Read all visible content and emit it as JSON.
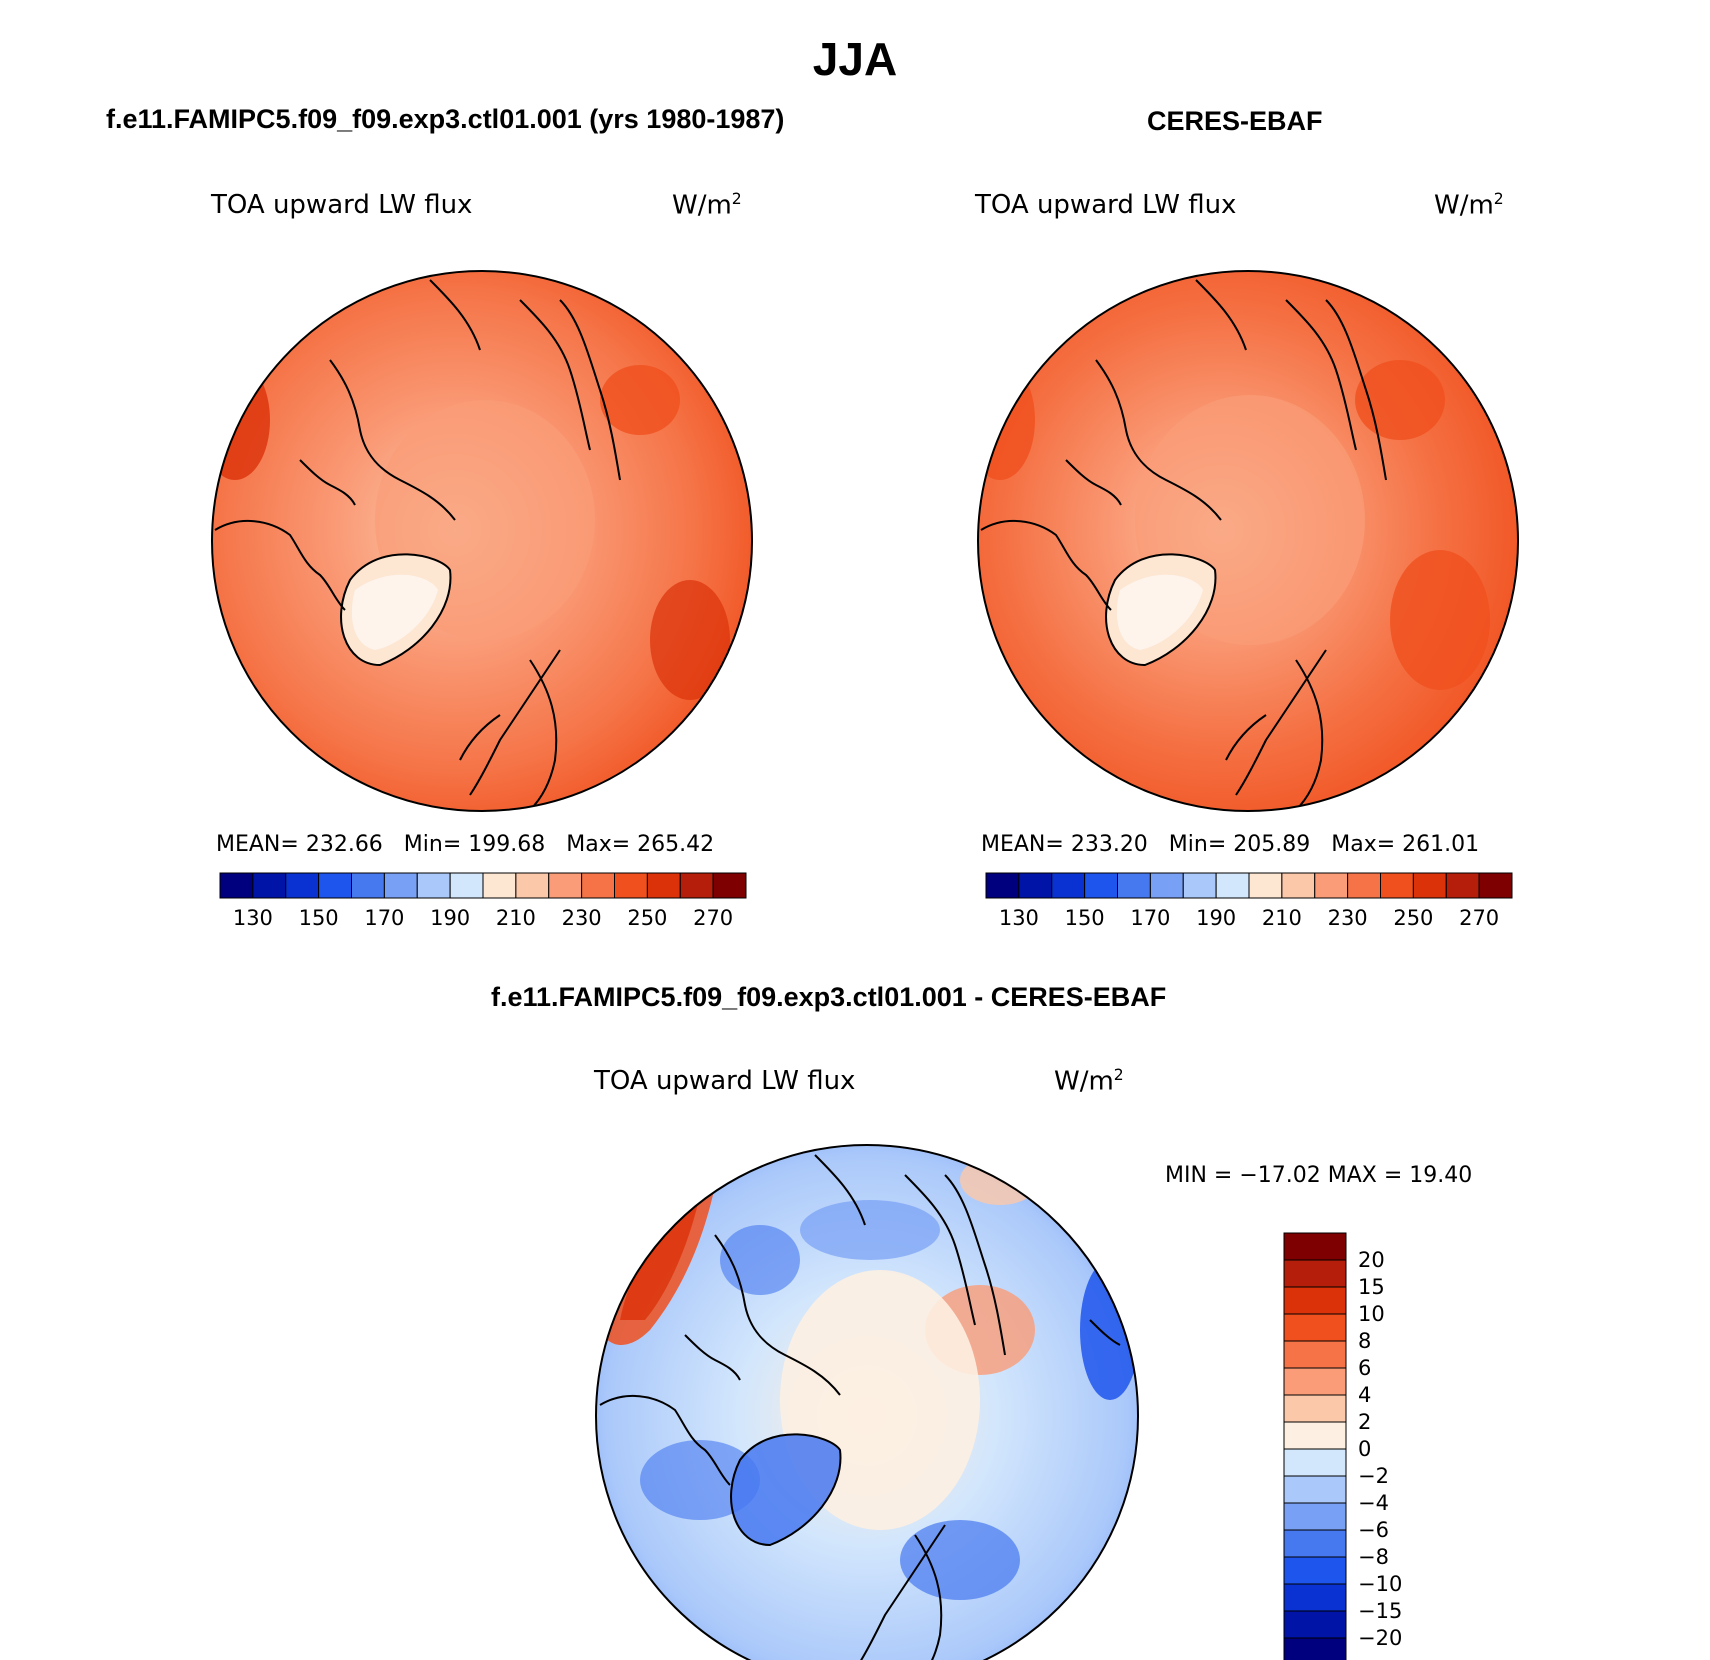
{
  "title": "JJA",
  "panels": [
    {
      "subtitle": "f.e11.FAMIPC5.f09_f09.exp3.ctl01.001 (yrs 1980-1987)",
      "variable": "TOA upward LW flux",
      "units_base": "W/m",
      "units_exp": "2",
      "stats": {
        "mean_label": "MEAN=",
        "mean": "232.66",
        "min_label": "Min=",
        "min": "199.68",
        "max_label": "Max=",
        "max": "265.42"
      }
    },
    {
      "subtitle": "CERES-EBAF",
      "variable": "TOA upward LW flux",
      "units_base": "W/m",
      "units_exp": "2",
      "stats": {
        "mean_label": "MEAN=",
        "mean": "233.20",
        "min_label": "Min=",
        "min": "205.89",
        "max_label": "Max=",
        "max": "261.01"
      }
    },
    {
      "subtitle": "f.e11.FAMIPC5.f09_f09.exp3.ctl01.001 - CERES-EBAF",
      "variable": "TOA upward LW flux",
      "units_base": "W/m",
      "units_exp": "2",
      "stats_line": "MIN = −17.02 MAX =  19.40"
    }
  ],
  "chart_data": [
    {
      "type": "heatmap",
      "projection": "north polar stereographic",
      "field": "TOA upward LW flux",
      "units": "W/m2",
      "mean": 232.66,
      "min": 199.68,
      "max": 265.42,
      "colorbar": {
        "orientation": "horizontal",
        "levels": [
          130,
          140,
          150,
          160,
          170,
          180,
          190,
          200,
          210,
          220,
          230,
          240,
          250,
          260,
          270
        ],
        "tick_labels": [
          "130",
          "150",
          "170",
          "190",
          "210",
          "230",
          "250",
          "270"
        ],
        "colors": [
          "#00007f",
          "#0014a8",
          "#0a32d2",
          "#1e55ec",
          "#4678f0",
          "#78a0f5",
          "#aac8fa",
          "#d2e6fc",
          "#fde6d2",
          "#fcc8aa",
          "#fa9c78",
          "#f57346",
          "#f0501e",
          "#dc320a",
          "#b41e0a",
          "#7f0000"
        ]
      }
    },
    {
      "type": "heatmap",
      "projection": "north polar stereographic",
      "field": "TOA upward LW flux",
      "units": "W/m2",
      "mean": 233.2,
      "min": 205.89,
      "max": 261.01,
      "colorbar": {
        "orientation": "horizontal",
        "levels": [
          130,
          140,
          150,
          160,
          170,
          180,
          190,
          200,
          210,
          220,
          230,
          240,
          250,
          260,
          270
        ],
        "tick_labels": [
          "130",
          "150",
          "170",
          "190",
          "210",
          "230",
          "250",
          "270"
        ],
        "colors": [
          "#00007f",
          "#0014a8",
          "#0a32d2",
          "#1e55ec",
          "#4678f0",
          "#78a0f5",
          "#aac8fa",
          "#d2e6fc",
          "#fde6d2",
          "#fcc8aa",
          "#fa9c78",
          "#f57346",
          "#f0501e",
          "#dc320a",
          "#b41e0a",
          "#7f0000"
        ]
      }
    },
    {
      "type": "heatmap",
      "projection": "north polar stereographic",
      "field": "TOA upward LW flux difference",
      "units": "W/m2",
      "min": -17.02,
      "max": 19.4,
      "colorbar": {
        "orientation": "vertical",
        "levels": [
          20,
          15,
          10,
          8,
          6,
          4,
          2,
          0,
          -2,
          -4,
          -6,
          -8,
          -10,
          -15,
          -20
        ],
        "tick_labels": [
          "20",
          "15",
          "10",
          "8",
          "6",
          "4",
          "2",
          "0",
          "−2",
          "−4",
          "−6",
          "−8",
          "−10",
          "−15",
          "−20"
        ],
        "colors": [
          "#7f0000",
          "#b41e0a",
          "#dc320a",
          "#f0501e",
          "#f57346",
          "#fa9c78",
          "#fcc8aa",
          "#fdf0e2",
          "#d2e6fc",
          "#aac8fa",
          "#78a0f5",
          "#4678f0",
          "#1e55ec",
          "#0a32d2",
          "#0014a8",
          "#00007f"
        ]
      }
    }
  ]
}
